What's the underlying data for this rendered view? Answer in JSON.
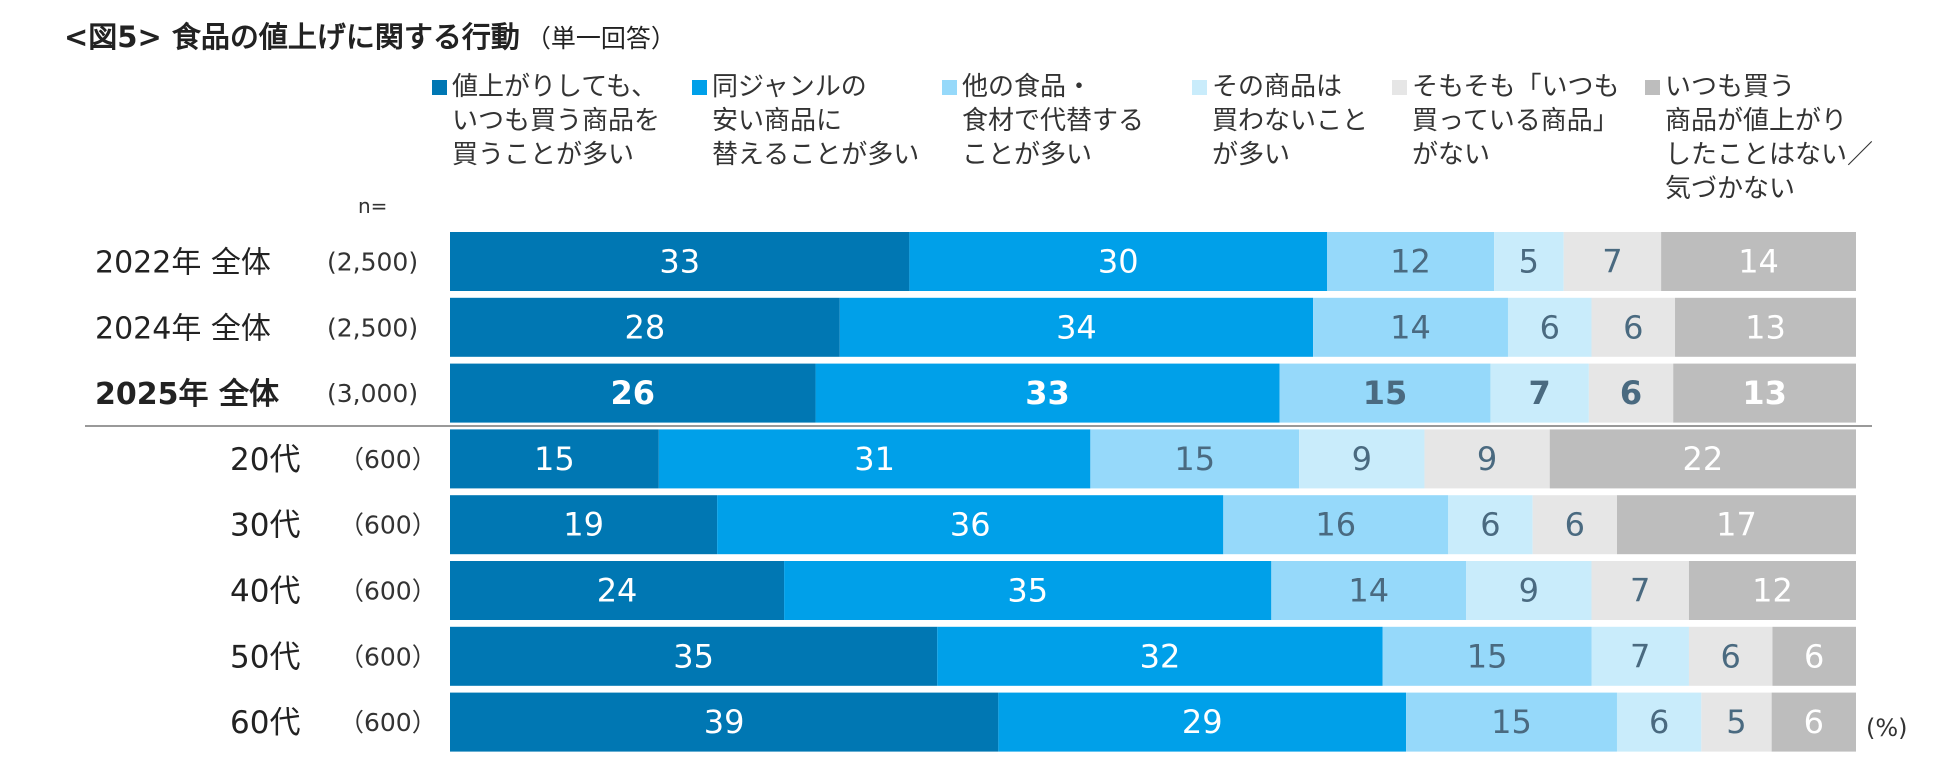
{
  "title": "<図5> 食品の値上げに関する行動",
  "subtitle": "（単一回答）",
  "n_label": "n=",
  "unit_label": "(%)",
  "chart_data": {
    "type": "bar",
    "orientation": "horizontal",
    "stacked": true,
    "percent": true,
    "title": "<図5> 食品の値上げに関する行動",
    "categories": [
      "2022年 全体",
      "2024年 全体",
      "2025年 全体",
      "20代",
      "30代",
      "40代",
      "50代",
      "60代"
    ],
    "n": [
      "(2,500)",
      "(2,500)",
      "(3,000)",
      "（600）",
      "（600）",
      "（600）",
      "（600）",
      "（600）"
    ],
    "bold_categories": [
      "2025年 全体"
    ],
    "divider_after": "2025年 全体",
    "series": [
      {
        "name": "値上がりしても、\nいつも買う商品を\n買うことが多い",
        "color": "#0077b3",
        "label_color": "#ffffff",
        "values": [
          33,
          28,
          26,
          15,
          19,
          24,
          35,
          39
        ]
      },
      {
        "name": "同ジャンルの\n安い商品に\n替えることが多い",
        "color": "#00a0e9",
        "label_color": "#ffffff",
        "values": [
          30,
          34,
          33,
          31,
          36,
          35,
          32,
          29
        ]
      },
      {
        "name": "他の食品・\n食材で代替する\nことが多い",
        "color": "#96d9fa",
        "label_color": "#4a6a80",
        "values": [
          12,
          14,
          15,
          15,
          16,
          14,
          15,
          15
        ]
      },
      {
        "name": "その商品は\n買わないこと\nが多い",
        "color": "#c9ecfb",
        "label_color": "#4a6a80",
        "values": [
          5,
          6,
          7,
          9,
          6,
          9,
          7,
          6
        ]
      },
      {
        "name": "そもそも「いつも\n買っている商品」\nがない",
        "color": "#e6e6e6",
        "label_color": "#4a6a80",
        "values": [
          7,
          6,
          6,
          9,
          6,
          7,
          6,
          5
        ]
      },
      {
        "name": "いつも買う\n商品が値上がり\nしたことはない／\n気づかない",
        "color": "#bdbdbd",
        "label_color": "#ffffff",
        "values": [
          14,
          13,
          13,
          22,
          17,
          12,
          6,
          6
        ]
      }
    ],
    "xlim": [
      0,
      100
    ]
  }
}
